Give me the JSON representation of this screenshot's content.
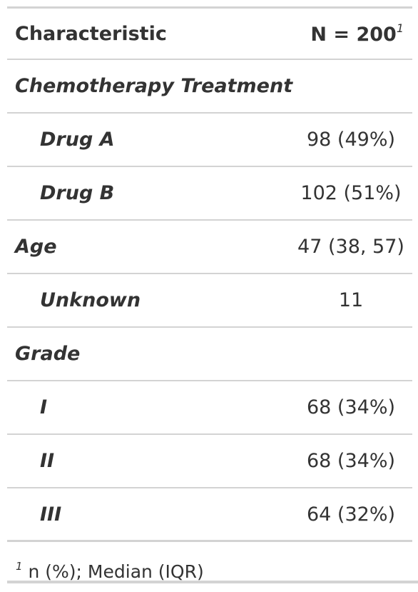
{
  "table": {
    "header": {
      "label": "Characteristic",
      "value": "N = 200",
      "value_footnote_mark": "1"
    },
    "rows": [
      {
        "label": "Chemotherapy Treatment",
        "value": "",
        "indent": false
      },
      {
        "label": "Drug A",
        "value": "98 (49%)",
        "indent": true
      },
      {
        "label": "Drug B",
        "value": "102 (51%)",
        "indent": true
      },
      {
        "label": "Age",
        "value": "47 (38, 57)",
        "indent": false
      },
      {
        "label": "Unknown",
        "value": "11",
        "indent": true
      },
      {
        "label": "Grade",
        "value": "",
        "indent": false
      },
      {
        "label": "I",
        "value": "68 (34%)",
        "indent": true
      },
      {
        "label": "II",
        "value": "68 (34%)",
        "indent": true
      },
      {
        "label": "III",
        "value": "64 (32%)",
        "indent": true
      }
    ]
  },
  "footnote": {
    "mark": "1",
    "text": "n (%); Median (IQR)"
  }
}
